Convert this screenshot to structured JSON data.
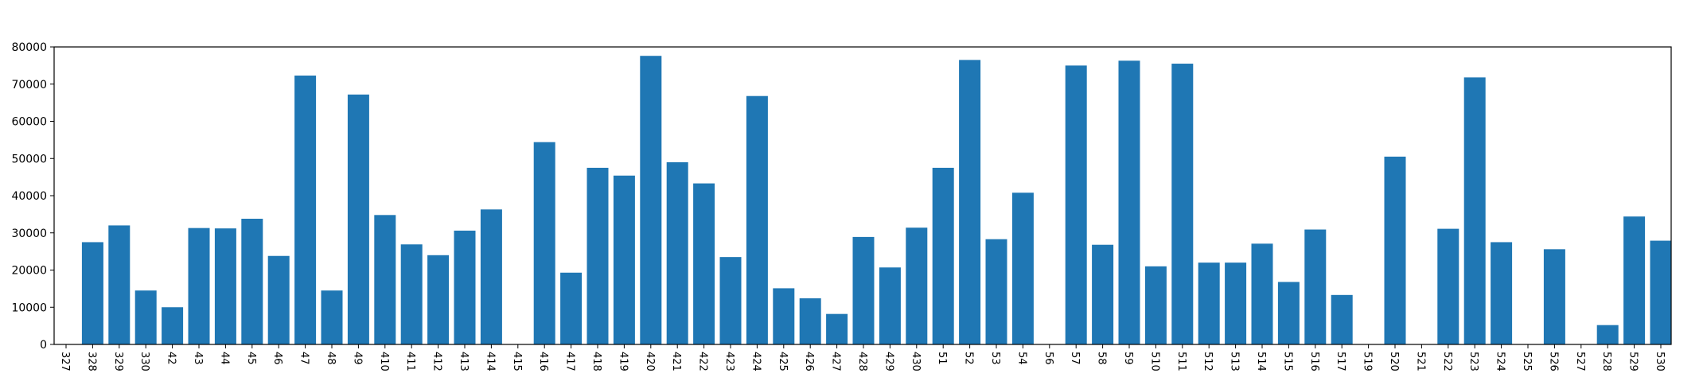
{
  "chart_data": {
    "type": "bar",
    "title": "",
    "xlabel": "",
    "ylabel": "",
    "ylim": [
      0,
      80000
    ],
    "yticks": [
      0,
      10000,
      20000,
      30000,
      40000,
      50000,
      60000,
      70000,
      80000
    ],
    "grid": false,
    "legend": "none",
    "bar_color": "#1f77b4",
    "categories": [
      "327",
      "328",
      "329",
      "330",
      "42",
      "43",
      "44",
      "45",
      "46",
      "47",
      "48",
      "49",
      "410",
      "411",
      "412",
      "413",
      "414",
      "415",
      "416",
      "417",
      "418",
      "419",
      "420",
      "421",
      "422",
      "423",
      "424",
      "425",
      "426",
      "427",
      "428",
      "429",
      "430",
      "51",
      "52",
      "53",
      "54",
      "56",
      "57",
      "58",
      "59",
      "510",
      "511",
      "512",
      "513",
      "514",
      "515",
      "516",
      "517",
      "519",
      "520",
      "521",
      "522",
      "523",
      "524",
      "525",
      "526",
      "527",
      "528",
      "529",
      "530"
    ],
    "values": [
      0,
      27500,
      32000,
      14500,
      10000,
      31300,
      31200,
      33800,
      23800,
      72300,
      14500,
      67200,
      34800,
      26900,
      24000,
      30600,
      36300,
      0,
      54400,
      19300,
      47500,
      45400,
      77600,
      49000,
      43300,
      23500,
      66800,
      15100,
      12400,
      8200,
      28900,
      20700,
      31400,
      47500,
      76500,
      28300,
      40800,
      0,
      75000,
      26800,
      76300,
      21000,
      75500,
      22000,
      22000,
      27100,
      16800,
      30900,
      13300,
      0,
      50500,
      0,
      31100,
      71800,
      27500,
      0,
      25600,
      0,
      5200,
      34400,
      27900
    ]
  }
}
